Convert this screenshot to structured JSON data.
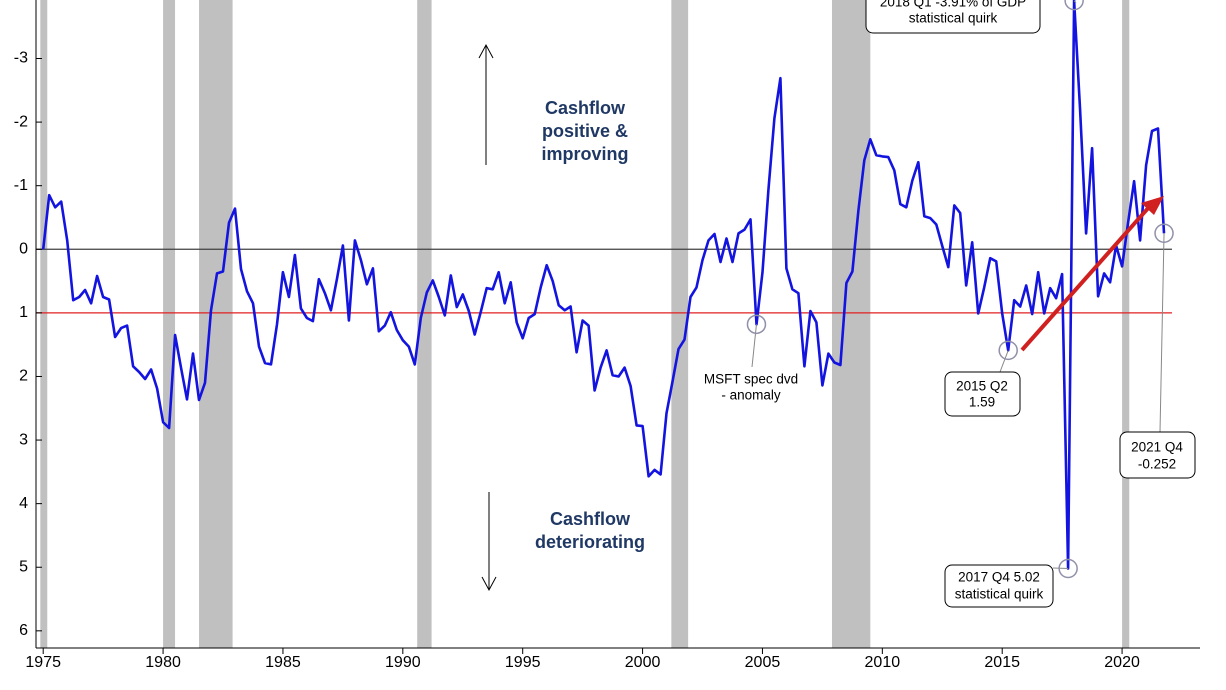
{
  "chart_data": {
    "type": "line",
    "x": [
      1975,
      1975.25,
      1975.5,
      1975.75,
      1976,
      1976.25,
      1976.5,
      1976.75,
      1977,
      1977.25,
      1977.5,
      1977.75,
      1978,
      1978.25,
      1978.5,
      1978.75,
      1979,
      1979.25,
      1979.5,
      1979.75,
      1980,
      1980.25,
      1980.5,
      1980.75,
      1981,
      1981.25,
      1981.5,
      1981.75,
      1982,
      1982.25,
      1982.5,
      1982.75,
      1983,
      1983.25,
      1983.5,
      1983.75,
      1984,
      1984.25,
      1984.5,
      1984.75,
      1985,
      1985.25,
      1985.5,
      1985.75,
      1986,
      1986.25,
      1986.5,
      1986.75,
      1987,
      1987.25,
      1987.5,
      1987.75,
      1988,
      1988.25,
      1988.5,
      1988.75,
      1989,
      1989.25,
      1989.5,
      1989.75,
      1990,
      1990.25,
      1990.5,
      1990.75,
      1991,
      1991.25,
      1991.5,
      1991.75,
      1992,
      1992.25,
      1992.5,
      1992.75,
      1993,
      1993.25,
      1993.5,
      1993.75,
      1994,
      1994.25,
      1994.5,
      1994.75,
      1995,
      1995.25,
      1995.5,
      1995.75,
      1996,
      1996.25,
      1996.5,
      1996.75,
      1997,
      1997.25,
      1997.5,
      1997.75,
      1998,
      1998.25,
      1998.5,
      1998.75,
      1999,
      1999.25,
      1999.5,
      1999.75,
      2000,
      2000.25,
      2000.5,
      2000.75,
      2001,
      2001.25,
      2001.5,
      2001.75,
      2002,
      2002.25,
      2002.5,
      2002.75,
      2003,
      2003.25,
      2003.5,
      2003.75,
      2004,
      2004.25,
      2004.5,
      2004.75,
      2005,
      2005.25,
      2005.5,
      2005.75,
      2006,
      2006.25,
      2006.5,
      2006.75,
      2007,
      2007.25,
      2007.5,
      2007.75,
      2008,
      2008.25,
      2008.5,
      2008.75,
      2009,
      2009.25,
      2009.5,
      2009.75,
      2010,
      2010.25,
      2010.5,
      2010.75,
      2011,
      2011.25,
      2011.5,
      2011.75,
      2012,
      2012.25,
      2012.5,
      2012.75,
      2013,
      2013.25,
      2013.5,
      2013.75,
      2014,
      2014.25,
      2014.5,
      2014.75,
      2015,
      2015.25,
      2015.5,
      2015.75,
      2016,
      2016.25,
      2016.5,
      2016.75,
      2017,
      2017.25,
      2017.5,
      2017.75,
      2018,
      2018.25,
      2018.5,
      2018.75,
      2019,
      2019.25,
      2019.5,
      2019.75,
      2020,
      2020.25,
      2020.5,
      2020.75,
      2021,
      2021.25,
      2021.5,
      2021.75
    ],
    "series": [
      {
        "color": "#1414e0",
        "values": [
          0,
          -0.85,
          -0.66,
          -0.75,
          -0.14,
          0.8,
          0.75,
          0.64,
          0.85,
          0.42,
          0.75,
          0.79,
          1.38,
          1.24,
          1.2,
          1.84,
          1.93,
          2.04,
          1.89,
          2.19,
          2.72,
          2.81,
          1.35,
          1.87,
          2.36,
          1.64,
          2.37,
          2.1,
          0.96,
          0.38,
          0.35,
          -0.42,
          -0.64,
          0.31,
          0.66,
          0.85,
          1.53,
          1.79,
          1.81,
          1.18,
          0.36,
          0.75,
          0.09,
          0.93,
          1.08,
          1.13,
          0.47,
          0.69,
          0.96,
          0.47,
          -0.06,
          1.12,
          -0.14,
          0.17,
          0.55,
          0.3,
          1.29,
          1.2,
          0.99,
          1.27,
          1.43,
          1.53,
          1.81,
          1.08,
          0.68,
          0.49,
          0.75,
          1.04,
          0.41,
          0.91,
          0.71,
          0.97,
          1.34,
          0.99,
          0.61,
          0.63,
          0.36,
          0.85,
          0.52,
          1.15,
          1.4,
          1.08,
          1.02,
          0.6,
          0.25,
          0.5,
          0.88,
          0.96,
          0.9,
          1.62,
          1.12,
          1.2,
          2.22,
          1.86,
          1.59,
          1.98,
          2.0,
          1.86,
          2.15,
          2.77,
          2.78,
          3.57,
          3.47,
          3.54,
          2.58,
          2.08,
          1.57,
          1.42,
          0.75,
          0.6,
          0.17,
          -0.14,
          -0.24,
          0.2,
          -0.17,
          0.2,
          -0.25,
          -0.31,
          -0.47,
          1.18,
          0.36,
          -0.93,
          -2.06,
          -2.69,
          0.3,
          0.63,
          0.69,
          1.84,
          0.97,
          1.15,
          2.14,
          1.64,
          1.78,
          1.82,
          0.53,
          0.35,
          -0.61,
          -1.4,
          -1.73,
          -1.48,
          -1.46,
          -1.45,
          -1.24,
          -0.71,
          -0.66,
          -1.08,
          -1.37,
          -0.52,
          -0.49,
          -0.39,
          -0.05,
          0.28,
          -0.69,
          -0.57,
          0.57,
          -0.11,
          1.01,
          0.6,
          0.14,
          0.19,
          1.01,
          1.59,
          0.8,
          0.9,
          0.57,
          1.02,
          0.36,
          1.01,
          0.61,
          0.77,
          0.39,
          5.02,
          -3.91,
          -2.19,
          -0.25,
          -1.59,
          0.74,
          0.38,
          0.52,
          -0.06,
          0.27,
          -0.42,
          -1.07,
          -0.14,
          -1.32,
          -1.86,
          -1.9,
          -0.252
        ]
      }
    ],
    "xlim": [
      1974.7,
      2023.25
    ],
    "ylim": [
      6.27,
      -3.92
    ],
    "xticks": [
      1975,
      1980,
      1985,
      1990,
      1995,
      2000,
      2005,
      2010,
      2015,
      2020
    ],
    "yticks": [
      -3,
      -2,
      -1,
      0,
      1,
      2,
      3,
      4,
      5,
      6
    ],
    "shaded_regions": [
      [
        1974.88,
        1975.17
      ],
      [
        1980.0,
        1980.5
      ],
      [
        1981.5,
        1982.9
      ],
      [
        1990.6,
        1991.2
      ],
      [
        2001.2,
        2001.9
      ],
      [
        2007.9,
        2009.5
      ],
      [
        2020.0,
        2020.3
      ]
    ],
    "shade_color": "#c0c0c0",
    "reference_lines": [
      {
        "value": 0,
        "color": "#404040"
      },
      {
        "value": 1,
        "color": "#e02020"
      }
    ],
    "labels": [
      {
        "lines": [
          "Cashflow",
          "positive &",
          "improving"
        ]
      },
      {
        "lines": [
          "Cashflow",
          "deteriorating"
        ]
      }
    ],
    "annotations": [
      {
        "lines": [
          "2018 Q1 -3.91% of GDP",
          "statistical quirk"
        ]
      },
      {
        "lines": [
          "MSFT spec dvd",
          "- anomaly"
        ]
      },
      {
        "lines": [
          "2015 Q2",
          "1.59"
        ]
      },
      {
        "lines": [
          "2017 Q4 5.02",
          "statistical quirk"
        ]
      },
      {
        "lines": [
          "2021 Q4",
          "-0.252"
        ]
      }
    ]
  }
}
